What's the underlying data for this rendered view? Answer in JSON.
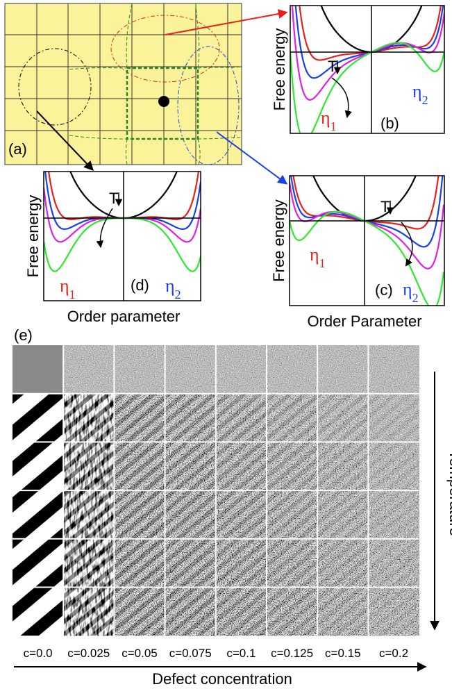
{
  "panel_a": {
    "label": "(a)"
  },
  "panel_b": {
    "y_label": "Free energy",
    "label": "(b)",
    "temperature": "T",
    "eta_1": {
      "symbol": "η",
      "subscript": "1"
    },
    "eta_2": {
      "symbol": "η",
      "subscript": "2"
    }
  },
  "panel_c": {
    "y_label": "Free energy",
    "label": "(c)",
    "temperature": "T",
    "x_label": "Order Parameter",
    "eta_1": {
      "symbol": "η",
      "subscript": "1"
    },
    "eta_2": {
      "symbol": "η",
      "subscript": "2"
    }
  },
  "panel_d": {
    "y_label": "Free energy",
    "label": "(d)",
    "temperature": "T",
    "x_label": "Order parameter",
    "eta_1": {
      "symbol": "η",
      "subscript": "1"
    },
    "eta_2": {
      "symbol": "η",
      "subscript": "2"
    }
  },
  "panel_e": {
    "label": "(e)",
    "y_label": "Temperature",
    "x_label": "Defect concentration",
    "columns": [
      "c=0.0",
      "c=0.025",
      "c=0.05",
      "c=0.075",
      "c=0.1",
      "c=0.125",
      "c=0.15",
      "c=0.2"
    ]
  }
}
